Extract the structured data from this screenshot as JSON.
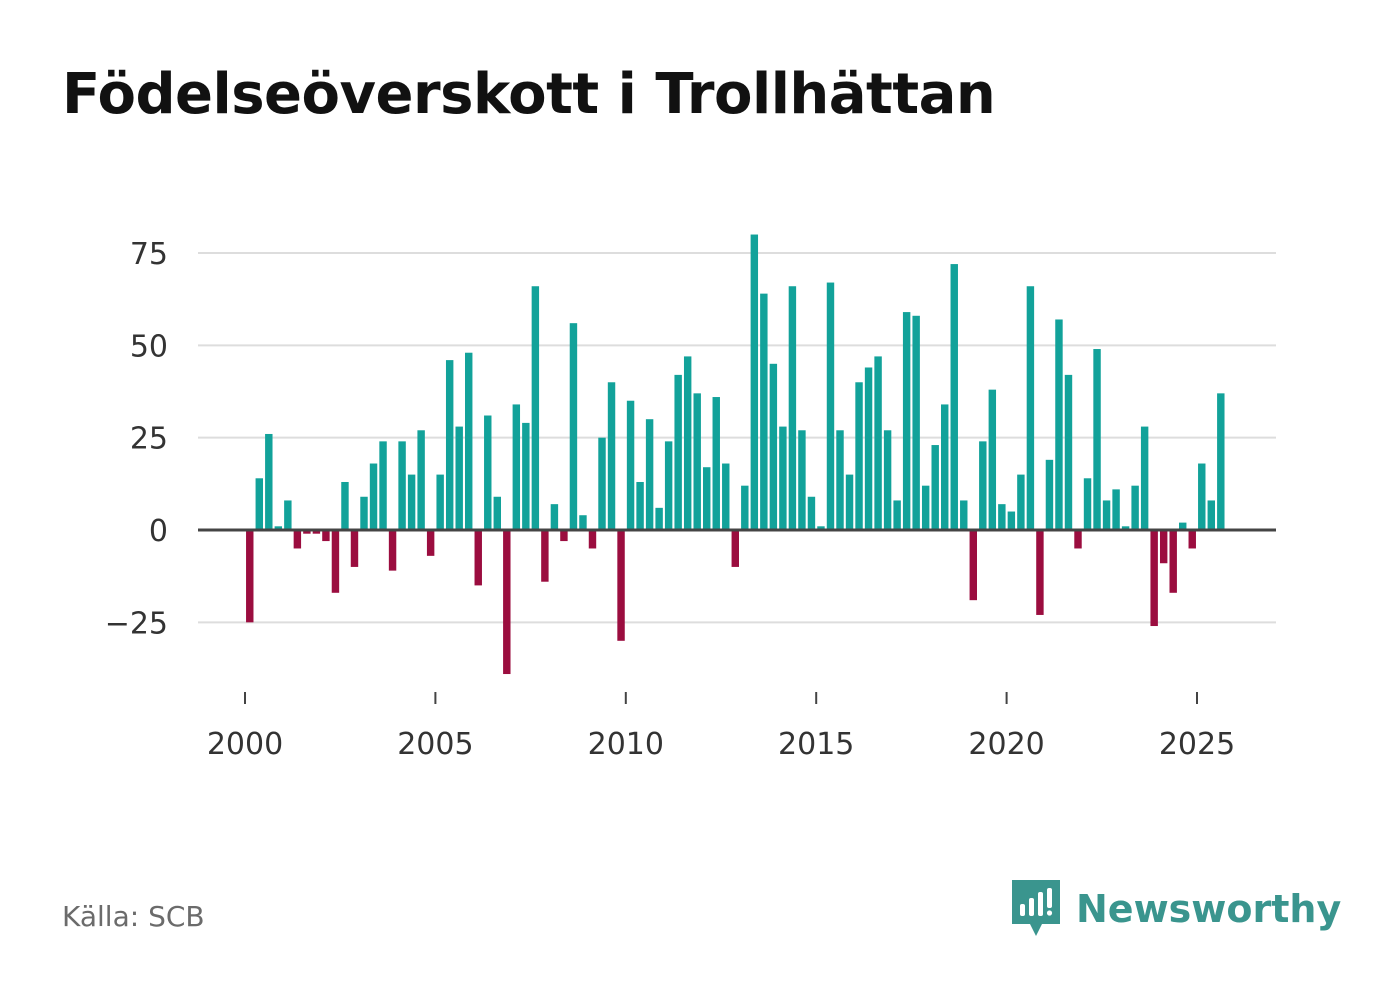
{
  "title": "Födelseöverskott i Trollhättan",
  "source": "Källa: SCB",
  "brand": {
    "name": "Newsworthy",
    "icon": "newsworthy-logo-icon"
  },
  "colors": {
    "positive": "#12a29a",
    "negative": "#9b0d3f",
    "grid": "#dddddd",
    "zero_line": "#444444",
    "text": "#333333",
    "brand": "#3a958e"
  },
  "chart_data": {
    "type": "bar",
    "title": "Födelseöverskott i Trollhättan",
    "xlabel": "",
    "ylabel": "",
    "frequency": "quarterly",
    "start": "2000 Q1",
    "xlim": [
      1999.5,
      2027.1
    ],
    "ylim": [
      -46,
      80
    ],
    "x_ticks": [
      2000,
      2005,
      2010,
      2015,
      2020,
      2025
    ],
    "x_tick_labels": [
      "2000",
      "2005",
      "2010",
      "2015",
      "2020",
      "2025"
    ],
    "y_ticks": [
      -25,
      0,
      25,
      50,
      75
    ],
    "y_tick_labels": [
      "−25",
      "0",
      "25",
      "50",
      "75"
    ],
    "grid": true,
    "legend": "none",
    "values": [
      -25,
      14,
      26,
      1,
      8,
      -5,
      -1,
      -1,
      -3,
      -17,
      13,
      -10,
      9,
      18,
      24,
      -11,
      24,
      15,
      27,
      -7,
      15,
      46,
      28,
      48,
      -15,
      31,
      9,
      -39,
      34,
      29,
      66,
      -14,
      7,
      -3,
      56,
      4,
      -5,
      25,
      40,
      -30,
      35,
      13,
      30,
      6,
      24,
      42,
      47,
      37,
      17,
      36,
      18,
      -10,
      12,
      80,
      64,
      45,
      28,
      66,
      27,
      9,
      1,
      67,
      27,
      15,
      40,
      44,
      47,
      27,
      8,
      59,
      58,
      12,
      23,
      34,
      72,
      8,
      -19,
      24,
      38,
      7,
      5,
      15,
      66,
      -23,
      19,
      57,
      42,
      -5,
      14,
      49,
      8,
      11,
      1,
      12,
      28,
      -26,
      -9,
      -17,
      2,
      -5,
      18,
      8,
      37
    ]
  }
}
